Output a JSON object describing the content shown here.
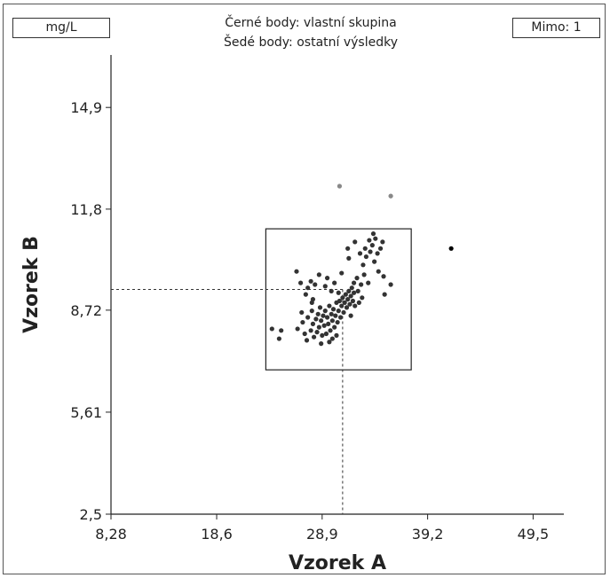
{
  "unit_label": "mg/L",
  "legend": {
    "line1": "Černé body: vlastní skupina",
    "line2": "Šedé body: ostatní výsledky"
  },
  "outside_label": "Mimo: 1",
  "chart_data": {
    "type": "scatter",
    "xlabel": "Vzorek A",
    "ylabel": "Vzorek B",
    "xlim": [
      8.28,
      52.5
    ],
    "ylim": [
      2.5,
      16.5
    ],
    "x_ticks": [
      8.28,
      18.6,
      28.9,
      39.2,
      49.5
    ],
    "x_tick_labels": [
      "8,28",
      "18,6",
      "28,9",
      "39,2",
      "49,5"
    ],
    "y_ticks": [
      2.5,
      5.61,
      8.72,
      11.8,
      14.9
    ],
    "y_tick_labels": [
      "2,5",
      "5,61",
      "8,72",
      "11,8",
      "14,9"
    ],
    "reference": {
      "x": 30.9,
      "y": 9.35
    },
    "acceptance_box": {
      "x": [
        23.4,
        37.6
      ],
      "y": [
        6.9,
        11.2
      ]
    },
    "series": [
      {
        "color": "#333333",
        "points": [
          [
            24.0,
            8.15
          ],
          [
            24.7,
            7.85
          ],
          [
            24.9,
            8.1
          ],
          [
            26.5,
            8.15
          ],
          [
            27.0,
            8.35
          ],
          [
            27.2,
            8.0
          ],
          [
            27.5,
            8.5
          ],
          [
            27.8,
            8.1
          ],
          [
            27.9,
            8.7
          ],
          [
            28.0,
            8.3
          ],
          [
            28.1,
            7.9
          ],
          [
            28.3,
            8.45
          ],
          [
            28.4,
            8.05
          ],
          [
            28.5,
            8.6
          ],
          [
            28.6,
            8.2
          ],
          [
            28.7,
            8.8
          ],
          [
            28.8,
            8.4
          ],
          [
            28.9,
            7.95
          ],
          [
            29.0,
            8.55
          ],
          [
            29.1,
            8.25
          ],
          [
            29.2,
            8.7
          ],
          [
            29.3,
            8.0
          ],
          [
            29.4,
            8.5
          ],
          [
            29.5,
            8.3
          ],
          [
            29.6,
            8.85
          ],
          [
            29.7,
            8.1
          ],
          [
            29.8,
            8.6
          ],
          [
            29.9,
            8.4
          ],
          [
            30.0,
            8.75
          ],
          [
            30.1,
            8.2
          ],
          [
            30.2,
            8.55
          ],
          [
            30.3,
            8.95
          ],
          [
            30.4,
            8.35
          ],
          [
            30.5,
            8.7
          ],
          [
            30.6,
            9.0
          ],
          [
            30.7,
            8.5
          ],
          [
            30.8,
            8.85
          ],
          [
            30.9,
            9.1
          ],
          [
            31.0,
            8.65
          ],
          [
            31.1,
            8.95
          ],
          [
            31.2,
            9.2
          ],
          [
            31.3,
            8.8
          ],
          [
            31.4,
            9.05
          ],
          [
            31.5,
            9.3
          ],
          [
            31.6,
            8.9
          ],
          [
            31.7,
            9.15
          ],
          [
            31.8,
            9.4
          ],
          [
            31.9,
            9.0
          ],
          [
            32.0,
            9.25
          ],
          [
            32.1,
            8.85
          ],
          [
            27.5,
            9.4
          ],
          [
            27.8,
            9.6
          ],
          [
            27.3,
            9.2
          ],
          [
            28.2,
            9.5
          ],
          [
            28.6,
            9.8
          ],
          [
            29.4,
            9.7
          ],
          [
            26.8,
            9.55
          ],
          [
            26.4,
            9.9
          ],
          [
            29.8,
            9.3
          ],
          [
            28.0,
            9.05
          ],
          [
            30.1,
            9.55
          ],
          [
            30.5,
            9.25
          ],
          [
            29.2,
            9.45
          ],
          [
            27.9,
            8.95
          ],
          [
            26.9,
            8.65
          ],
          [
            30.3,
            7.95
          ],
          [
            29.6,
            7.75
          ],
          [
            28.8,
            7.7
          ],
          [
            29.9,
            7.85
          ],
          [
            27.4,
            7.8
          ],
          [
            32.4,
            9.3
          ],
          [
            32.7,
            9.5
          ],
          [
            32.3,
            9.7
          ],
          [
            33.0,
            9.8
          ],
          [
            33.4,
            9.55
          ],
          [
            32.9,
            10.1
          ],
          [
            33.2,
            10.35
          ],
          [
            33.6,
            10.5
          ],
          [
            34.0,
            10.2
          ],
          [
            33.8,
            10.7
          ],
          [
            34.3,
            10.45
          ],
          [
            33.5,
            10.85
          ],
          [
            34.1,
            10.9
          ],
          [
            34.6,
            10.6
          ],
          [
            33.1,
            10.6
          ],
          [
            34.8,
            10.8
          ],
          [
            33.9,
            11.05
          ],
          [
            32.6,
            10.45
          ],
          [
            34.4,
            9.9
          ],
          [
            35.6,
            9.5
          ],
          [
            32.1,
            10.8
          ],
          [
            31.4,
            10.6
          ],
          [
            35.0,
            9.2
          ],
          [
            34.9,
            9.75
          ],
          [
            31.5,
            10.3
          ],
          [
            30.8,
            9.85
          ],
          [
            32.0,
            9.55
          ],
          [
            31.7,
            8.55
          ],
          [
            32.5,
            8.95
          ],
          [
            32.8,
            9.1
          ]
        ]
      },
      {
        "color": "#000000",
        "points": [
          [
            41.5,
            10.6
          ]
        ]
      },
      {
        "color": "#888888",
        "points": [
          [
            30.6,
            12.5
          ],
          [
            35.6,
            12.2
          ]
        ]
      }
    ]
  }
}
